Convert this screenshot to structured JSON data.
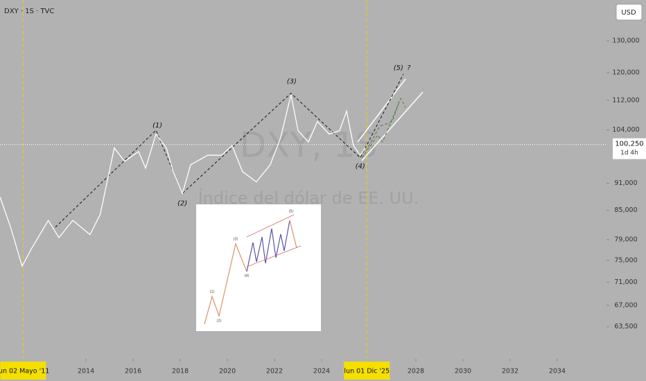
{
  "header": {
    "symbol": "DXY · 1S · TVC",
    "currency": "USD"
  },
  "watermark": {
    "symbol": "DXY, 1S",
    "name": "Índice del dólar de EE. UU."
  },
  "inset": {
    "labels": [
      "(1)",
      "(2)",
      "(3)",
      "(4)",
      "(5)"
    ]
  },
  "chart_data": {
    "type": "line",
    "log_scale": true,
    "grid": false,
    "color": "#ffffff",
    "x": [
      2010.35,
      2010.8,
      2011.29,
      2011.67,
      2012.4,
      2012.85,
      2013.44,
      2014.17,
      2014.6,
      2015.2,
      2015.64,
      2016.23,
      2016.53,
      2016.97,
      2017.41,
      2017.7,
      2018.09,
      2018.44,
      2019.17,
      2019.76,
      2020.2,
      2020.64,
      2021.23,
      2021.82,
      2022.26,
      2022.7,
      2023.0,
      2023.44,
      2023.82,
      2024.32,
      2024.76,
      2025.06,
      2025.35,
      2025.64,
      2025.85
    ],
    "values": [
      87.9,
      81.5,
      73.9,
      77.1,
      82.9,
      79.4,
      82.9,
      80.0,
      84.1,
      99.4,
      96.1,
      98.5,
      94.5,
      102.9,
      99.4,
      93.7,
      88.7,
      95.3,
      97.6,
      97.6,
      100.0,
      93.7,
      91.3,
      95.3,
      102.0,
      113.6,
      103.8,
      100.9,
      106.2,
      102.9,
      103.8,
      109.0,
      100.0,
      97.6,
      99.4
    ],
    "xlim": [
      2010.35,
      2036.09
    ],
    "xticks": [
      2014,
      2016,
      2018,
      2020,
      2022,
      2024,
      2028,
      2030,
      2032,
      2034
    ],
    "x_markers": [
      {
        "value": 2011.33,
        "label": "lun 02 Mayo '11"
      },
      {
        "value": 2025.92,
        "label": "lun 01 Dic '25"
      }
    ],
    "ylim": [
      58.6,
      144
    ],
    "yticks": [
      {
        "value": 63.5,
        "label": "63,500"
      },
      {
        "value": 67,
        "label": "67,000"
      },
      {
        "value": 71,
        "label": "71,000"
      },
      {
        "value": 75,
        "label": "75,000"
      },
      {
        "value": 79,
        "label": "79,000"
      },
      {
        "value": 85,
        "label": "85,000"
      },
      {
        "value": 91,
        "label": "91,000"
      },
      {
        "value": 104,
        "label": "104,000"
      },
      {
        "value": 112,
        "label": "112,000"
      },
      {
        "value": 120,
        "label": "120,000"
      },
      {
        "value": 130,
        "label": "130,000"
      }
    ],
    "last_price": {
      "value": 100.25,
      "label": "100,250",
      "countdown": "1d 4h"
    },
    "wave_path": {
      "x": [
        2012.7,
        2016.97,
        2018.09,
        2022.7,
        2025.64,
        2027.47
      ],
      "values": [
        81.5,
        103.9,
        88.7,
        114.0,
        97.0,
        119.6
      ]
    },
    "annotations": [
      {
        "text": "(1)",
        "x": 2017.03,
        "y": 105.2
      },
      {
        "text": "(2)",
        "x": 2018.09,
        "y": 86.5
      },
      {
        "text": "(3)",
        "x": 2022.73,
        "y": 117.4
      },
      {
        "text": "(4)",
        "x": 2025.64,
        "y": 94.9
      },
      {
        "text": "(5)",
        "x": 2027.26,
        "y": 121.5
      },
      {
        "text": "?",
        "x": 2027.7,
        "y": 121.5
      }
    ]
  }
}
